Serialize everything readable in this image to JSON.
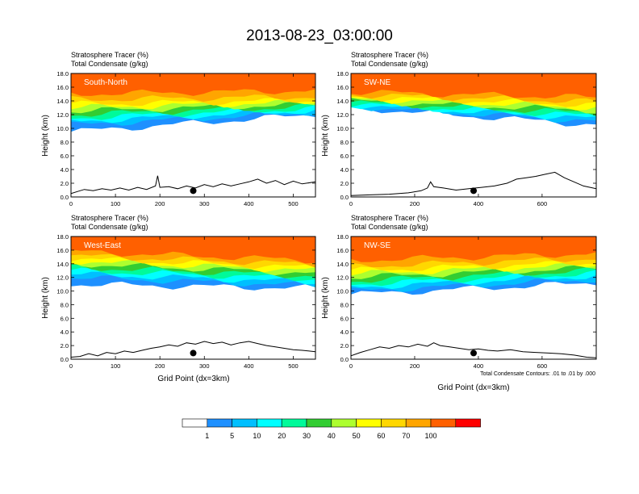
{
  "title": "2013-08-23_03:00:00",
  "panel_header_1": "Stratosphere Tracer   (%)",
  "panel_header_2": "Total Condensate   (g/kg)",
  "ylabel": "Height (km)",
  "xlabel": "Grid Point (dx=3km)",
  "contour_note": "Total Condensate Contours: .01 to .01 by .000",
  "colors": {
    "white": "#ffffff",
    "b1": "#1e90ff",
    "b5": "#00bfff",
    "b10": "#00ffff",
    "b20": "#00fa9a",
    "b30": "#32cd32",
    "b40": "#adff2f",
    "b50": "#ffff00",
    "b60": "#ffd700",
    "b70": "#ffa500",
    "b80": "#ff6000",
    "b100": "#ff0000"
  },
  "colorbar": {
    "labels": [
      "1",
      "5",
      "10",
      "20",
      "30",
      "40",
      "50",
      "60",
      "70",
      "100"
    ]
  },
  "chart_data": [
    {
      "type": "heatmap",
      "name": "South-North",
      "label": "South-North",
      "ylim": [
        0,
        18
      ],
      "xlim": [
        0,
        550
      ],
      "xticks": [
        0,
        100,
        200,
        300,
        400,
        500
      ],
      "yticks": [
        "0.0",
        "2.0",
        "4.0",
        "6.0",
        "8.0",
        "10.0",
        "12.0",
        "14.0",
        "16.0",
        "18.0"
      ],
      "marker_x": 275,
      "bands_left": [
        9.5,
        10.5,
        11.0,
        11.5,
        12.0,
        12.5,
        13.0,
        13.5,
        14.2,
        15.0
      ],
      "bands_right": [
        12.0,
        12.3,
        12.6,
        12.9,
        13.2,
        13.5,
        13.8,
        14.1,
        14.6,
        15.5
      ],
      "terrain": [
        [
          0,
          0.5
        ],
        [
          15,
          0.8
        ],
        [
          30,
          1.1
        ],
        [
          50,
          0.9
        ],
        [
          70,
          1.2
        ],
        [
          90,
          1.0
        ],
        [
          110,
          1.3
        ],
        [
          130,
          1.0
        ],
        [
          150,
          1.4
        ],
        [
          170,
          1.1
        ],
        [
          190,
          1.6
        ],
        [
          195,
          3.1
        ],
        [
          200,
          1.4
        ],
        [
          220,
          1.5
        ],
        [
          240,
          1.2
        ],
        [
          260,
          1.6
        ],
        [
          280,
          1.3
        ],
        [
          300,
          1.8
        ],
        [
          320,
          1.5
        ],
        [
          340,
          1.9
        ],
        [
          360,
          1.6
        ],
        [
          380,
          1.9
        ],
        [
          400,
          2.2
        ],
        [
          420,
          2.6
        ],
        [
          440,
          2.0
        ],
        [
          460,
          2.4
        ],
        [
          480,
          1.8
        ],
        [
          500,
          2.3
        ],
        [
          520,
          1.9
        ],
        [
          550,
          2.2
        ]
      ]
    },
    {
      "type": "heatmap",
      "name": "SW-NE",
      "label": "SW-NE",
      "ylim": [
        0,
        18
      ],
      "xlim": [
        0,
        770
      ],
      "xticks": [
        0,
        200,
        400,
        600
      ],
      "yticks": [
        "0.0",
        "2.0",
        "4.0",
        "6.0",
        "8.0",
        "10.0",
        "12.0",
        "14.0",
        "16.0",
        "18.0"
      ],
      "marker_x": 385,
      "bands_left": [
        13.0,
        13.2,
        13.4,
        13.6,
        13.8,
        14.0,
        14.3,
        14.6,
        14.9,
        15.3
      ],
      "bands_right": [
        10.5,
        11.0,
        11.4,
        11.8,
        12.2,
        12.6,
        13.0,
        13.4,
        13.9,
        14.5
      ],
      "terrain": [
        [
          0,
          0.2
        ],
        [
          60,
          0.3
        ],
        [
          120,
          0.4
        ],
        [
          180,
          0.6
        ],
        [
          220,
          0.9
        ],
        [
          240,
          1.3
        ],
        [
          250,
          2.2
        ],
        [
          260,
          1.5
        ],
        [
          290,
          1.3
        ],
        [
          330,
          1.0
        ],
        [
          370,
          1.2
        ],
        [
          410,
          1.4
        ],
        [
          450,
          1.6
        ],
        [
          490,
          2.0
        ],
        [
          520,
          2.6
        ],
        [
          550,
          2.8
        ],
        [
          580,
          3.0
        ],
        [
          610,
          3.3
        ],
        [
          640,
          3.6
        ],
        [
          670,
          2.8
        ],
        [
          700,
          2.2
        ],
        [
          730,
          1.6
        ],
        [
          770,
          1.2
        ]
      ]
    },
    {
      "type": "heatmap",
      "name": "West-East",
      "label": "West-East",
      "ylim": [
        0,
        18
      ],
      "xlim": [
        0,
        550
      ],
      "xticks": [
        0,
        100,
        200,
        300,
        400,
        500
      ],
      "yticks": [
        "0.0",
        "2.0",
        "4.0",
        "6.0",
        "8.0",
        "10.0",
        "12.0",
        "14.0",
        "16.0",
        "18.0"
      ],
      "marker_x": 275,
      "bands_left": [
        11.0,
        12.0,
        12.5,
        13.0,
        13.5,
        14.0,
        14.4,
        14.8,
        15.2,
        15.8
      ],
      "bands_right": [
        10.4,
        10.8,
        11.3,
        11.8,
        12.2,
        12.6,
        13.0,
        13.4,
        13.9,
        14.5
      ],
      "terrain": [
        [
          0,
          0.3
        ],
        [
          20,
          0.4
        ],
        [
          40,
          0.8
        ],
        [
          60,
          0.5
        ],
        [
          80,
          1.0
        ],
        [
          100,
          0.8
        ],
        [
          120,
          1.2
        ],
        [
          140,
          1.0
        ],
        [
          160,
          1.3
        ],
        [
          180,
          1.6
        ],
        [
          200,
          1.8
        ],
        [
          220,
          2.1
        ],
        [
          240,
          1.9
        ],
        [
          260,
          2.4
        ],
        [
          280,
          2.2
        ],
        [
          300,
          2.6
        ],
        [
          320,
          2.3
        ],
        [
          340,
          2.5
        ],
        [
          360,
          2.1
        ],
        [
          380,
          2.4
        ],
        [
          400,
          2.6
        ],
        [
          420,
          2.3
        ],
        [
          440,
          2.0
        ],
        [
          460,
          1.8
        ],
        [
          480,
          1.6
        ],
        [
          500,
          1.4
        ],
        [
          520,
          1.3
        ],
        [
          550,
          1.1
        ]
      ]
    },
    {
      "type": "heatmap",
      "name": "NW-SE",
      "label": "NW-SE",
      "ylim": [
        0,
        18
      ],
      "xlim": [
        0,
        770
      ],
      "xticks": [
        0,
        200,
        400,
        600
      ],
      "yticks": [
        "0.0",
        "2.0",
        "4.0",
        "6.0",
        "8.0",
        "10.0",
        "12.0",
        "14.0",
        "16.0",
        "18.0"
      ],
      "marker_x": 385,
      "bands_left": [
        9.5,
        10.0,
        10.5,
        11.0,
        11.5,
        12.0,
        12.5,
        13.0,
        13.6,
        14.5
      ],
      "bands_right": [
        11.2,
        11.7,
        12.2,
        12.6,
        13.0,
        13.4,
        13.8,
        14.2,
        14.8,
        15.5
      ],
      "terrain": [
        [
          0,
          0.5
        ],
        [
          30,
          1.0
        ],
        [
          60,
          1.4
        ],
        [
          90,
          1.8
        ],
        [
          120,
          1.6
        ],
        [
          150,
          2.0
        ],
        [
          180,
          1.8
        ],
        [
          210,
          2.2
        ],
        [
          240,
          1.9
        ],
        [
          260,
          2.4
        ],
        [
          280,
          2.0
        ],
        [
          310,
          1.8
        ],
        [
          340,
          1.6
        ],
        [
          370,
          1.4
        ],
        [
          400,
          1.5
        ],
        [
          430,
          1.3
        ],
        [
          460,
          1.2
        ],
        [
          500,
          1.4
        ],
        [
          540,
          1.1
        ],
        [
          580,
          1.0
        ],
        [
          620,
          0.9
        ],
        [
          660,
          0.8
        ],
        [
          700,
          0.6
        ],
        [
          740,
          0.3
        ],
        [
          770,
          0.2
        ]
      ]
    }
  ]
}
